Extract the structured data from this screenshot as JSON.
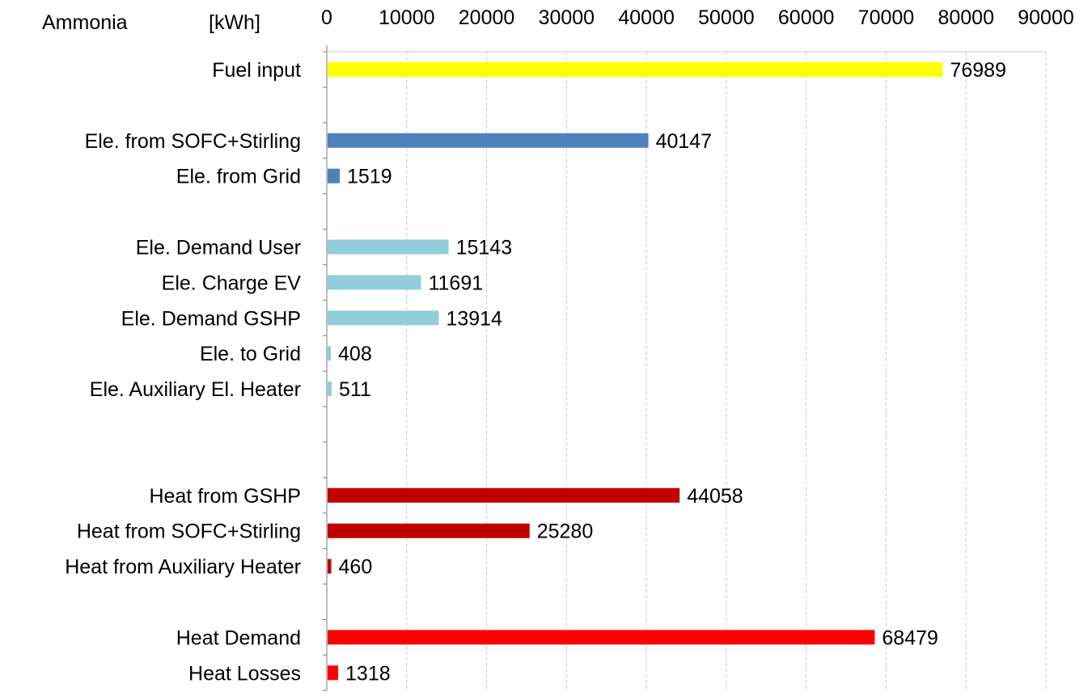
{
  "chart_data": {
    "type": "bar",
    "orientation": "horizontal",
    "title": "Ammonia",
    "unit_label": "[kWh]",
    "xlim": [
      0,
      90000
    ],
    "x_ticks": [
      "0",
      "10000",
      "20000",
      "30000",
      "40000",
      "50000",
      "60000",
      "70000",
      "80000",
      "90000"
    ],
    "x_axis_position": "top",
    "grid": true,
    "categories": [
      "Fuel input",
      "",
      "Ele. from SOFC+Stirling",
      "Ele. from Grid",
      "",
      "Ele. Demand User",
      "Ele. Charge EV",
      "Ele. Demand GSHP",
      "Ele. to Grid",
      "Ele. Auxiliary El. Heater",
      "",
      "",
      "Heat from GSHP",
      "Heat from SOFC+Stirling",
      "Heat from Auxiliary Heater",
      "",
      "Heat Demand",
      "Heat Losses"
    ],
    "values": [
      76989,
      null,
      40147,
      1519,
      null,
      15143,
      11691,
      13914,
      408,
      511,
      null,
      null,
      44058,
      25280,
      460,
      null,
      68479,
      1318
    ],
    "value_labels": [
      "76989",
      "",
      "40147",
      "1519",
      "",
      "15143",
      "11691",
      "13914",
      "408",
      "511",
      "",
      "",
      "44058",
      "25280",
      "460",
      "",
      "68479",
      "1318"
    ],
    "colors": [
      "#ffff00",
      null,
      "#4f81bd",
      "#4f81bd",
      null,
      "#92cddc",
      "#92cddc",
      "#92cddc",
      "#92cddc",
      "#92cddc",
      null,
      null,
      "#c00000",
      "#c00000",
      "#c00000",
      null,
      "#ff0000",
      "#ff0000"
    ]
  }
}
